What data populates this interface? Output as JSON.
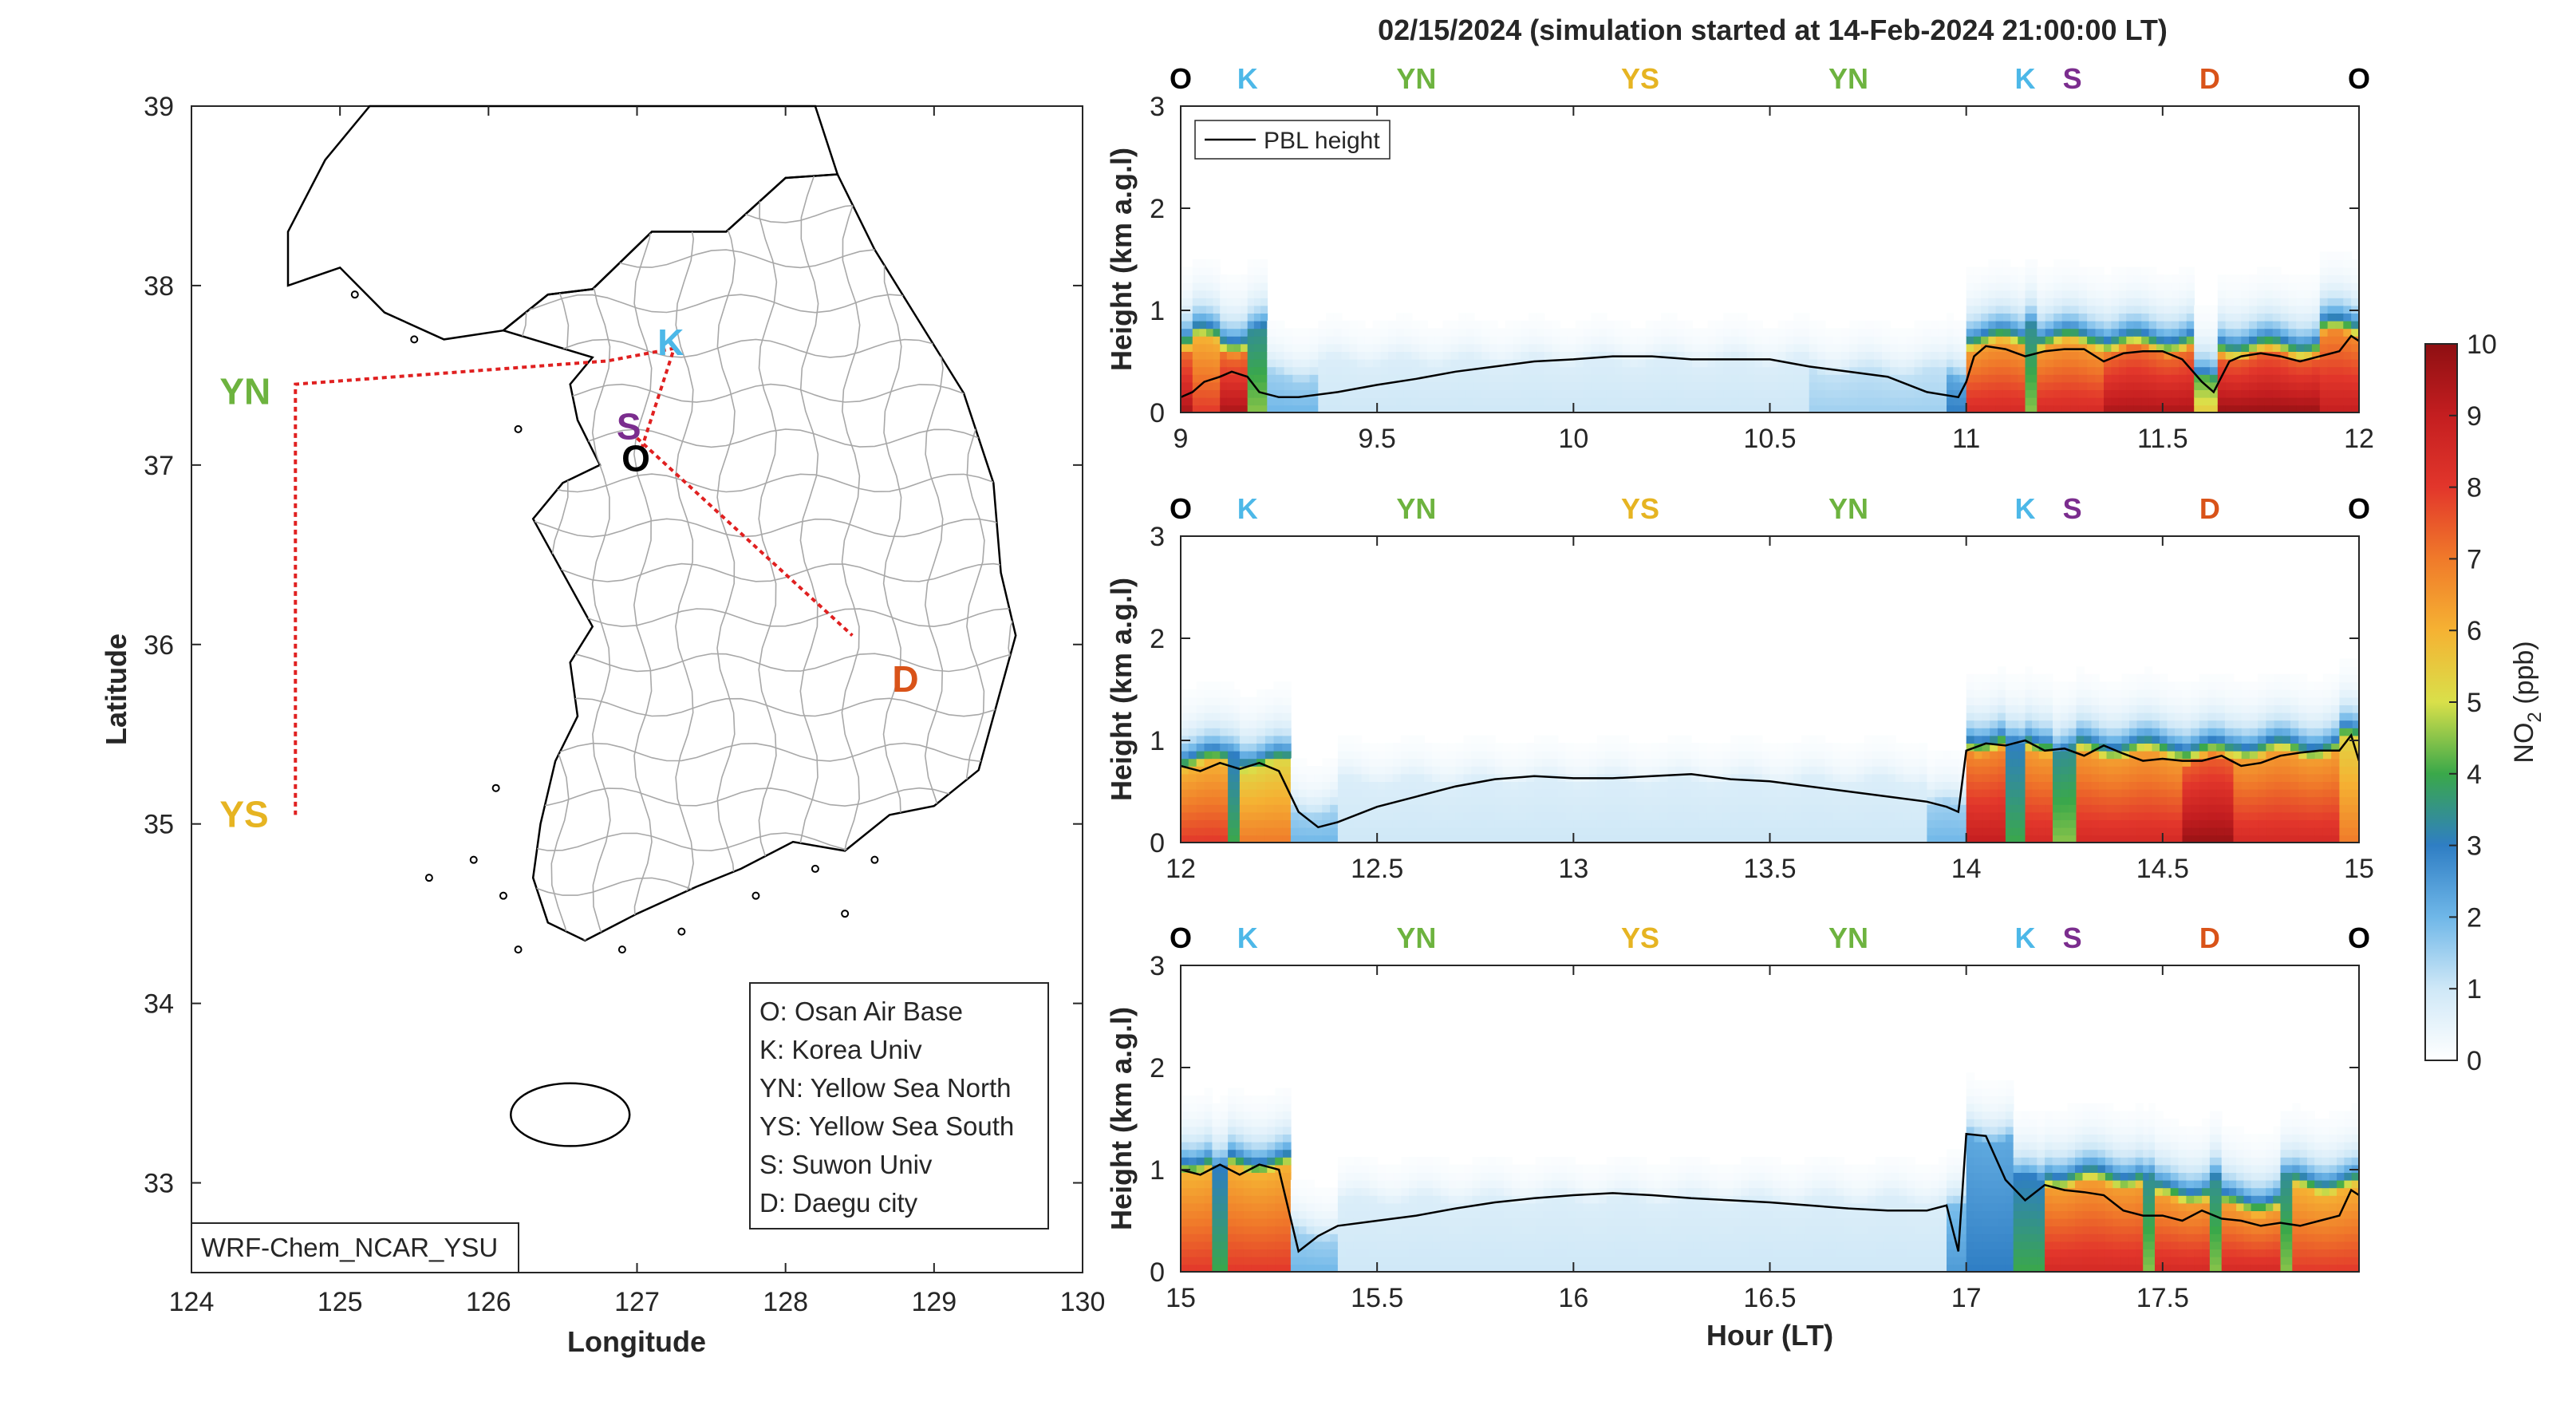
{
  "title": "02/15/2024 (simulation started at 14-Feb-2024 21:00:00 LT)",
  "colors": {
    "osan": "#000000",
    "korea": "#4db8e8",
    "yellow_north": "#6db33f",
    "yellow_south": "#e6b422",
    "suwon": "#7b2d8e",
    "daegu": "#d95319",
    "track": "#e02020",
    "pbl": "#000000"
  },
  "map": {
    "xlabel": "Longitude",
    "ylabel": "Latitude",
    "xlim": [
      124,
      130
    ],
    "ylim": [
      32.5,
      39
    ],
    "xticks": [
      "124",
      "125",
      "126",
      "127",
      "128",
      "129",
      "130"
    ],
    "yticks": [
      "33",
      "34",
      "35",
      "36",
      "37",
      "38",
      "39"
    ],
    "model_label": "WRF-Chem_NCAR_YSU",
    "sites": [
      {
        "code": "O",
        "lon": 127.03,
        "lat": 37.09,
        "color": "#000000"
      },
      {
        "code": "K",
        "lon": 127.03,
        "lat": 37.59,
        "color": "#4db8e8"
      },
      {
        "code": "YN",
        "lon": 124.7,
        "lat": 37.45,
        "color": "#6db33f"
      },
      {
        "code": "YS",
        "lon": 124.7,
        "lat": 35.05,
        "color": "#e6b422"
      },
      {
        "code": "S",
        "lon": 126.97,
        "lat": 37.3,
        "color": "#7b2d8e"
      },
      {
        "code": "D",
        "lon": 128.6,
        "lat": 35.87,
        "color": "#d95319"
      }
    ],
    "track": [
      [
        127.03,
        37.09
      ],
      [
        127.25,
        37.65
      ],
      [
        126.8,
        37.58
      ],
      [
        124.7,
        37.45
      ],
      [
        124.7,
        35.05
      ]
    ],
    "track2": [
      [
        127.0,
        37.15
      ],
      [
        128.45,
        36.05
      ]
    ],
    "legend": [
      "O: Osan Air Base",
      "K: Korea Univ",
      "YN: Yellow Sea North",
      "YS: Yellow Sea South",
      "S: Suwon Univ",
      "D: Daegu city"
    ]
  },
  "chart_data": [
    {
      "type": "heatmap",
      "title": "02/15/2024 (simulation started at 14-Feb-2024 21:00:00 LT)",
      "xlabel": "",
      "ylabel": "Height (km a.g.l)",
      "xlim": [
        9,
        12
      ],
      "ylim": [
        0,
        3
      ],
      "xticks": [
        "9",
        "9.5",
        "10",
        "10.5",
        "11",
        "11.5",
        "12"
      ],
      "yticks": [
        "0",
        "1",
        "2",
        "3"
      ],
      "legend": "PBL height",
      "legend_position": "top-left",
      "site_marks": [
        {
          "code": "O",
          "x": 9.0
        },
        {
          "code": "K",
          "x": 9.17
        },
        {
          "code": "YN",
          "x": 9.6
        },
        {
          "code": "YS",
          "x": 10.17
        },
        {
          "code": "YN",
          "x": 10.7
        },
        {
          "code": "K",
          "x": 11.15
        },
        {
          "code": "S",
          "x": 11.27
        },
        {
          "code": "D",
          "x": 11.62
        },
        {
          "code": "O",
          "x": 12.0
        }
      ],
      "pbl_height": {
        "x": [
          9.0,
          9.03,
          9.06,
          9.1,
          9.13,
          9.17,
          9.2,
          9.25,
          9.3,
          9.4,
          9.5,
          9.6,
          9.7,
          9.8,
          9.9,
          10.0,
          10.1,
          10.2,
          10.3,
          10.4,
          10.5,
          10.6,
          10.7,
          10.8,
          10.9,
          10.98,
          11.0,
          11.02,
          11.05,
          11.1,
          11.15,
          11.2,
          11.25,
          11.3,
          11.35,
          11.4,
          11.45,
          11.5,
          11.55,
          11.6,
          11.63,
          11.67,
          11.7,
          11.75,
          11.8,
          11.85,
          11.9,
          11.95,
          11.98,
          12.0
        ],
        "y": [
          0.15,
          0.2,
          0.3,
          0.35,
          0.4,
          0.35,
          0.2,
          0.15,
          0.15,
          0.2,
          0.27,
          0.33,
          0.4,
          0.45,
          0.5,
          0.52,
          0.55,
          0.55,
          0.52,
          0.52,
          0.52,
          0.45,
          0.4,
          0.35,
          0.2,
          0.15,
          0.3,
          0.55,
          0.65,
          0.62,
          0.55,
          0.6,
          0.62,
          0.62,
          0.5,
          0.58,
          0.6,
          0.6,
          0.52,
          0.3,
          0.2,
          0.5,
          0.55,
          0.58,
          0.55,
          0.5,
          0.55,
          0.6,
          0.75,
          0.7
        ]
      },
      "no2_ppb": {
        "note_cols": "time x",
        "columns": [
          {
            "x0": 9.0,
            "x1": 9.03,
            "surface": 9.5,
            "top": 0.6
          },
          {
            "x0": 9.03,
            "x1": 9.1,
            "surface": 8.0,
            "top": 0.7
          },
          {
            "x0": 9.1,
            "x1": 9.17,
            "surface": 9.5,
            "top": 0.6
          },
          {
            "x0": 9.17,
            "x1": 9.22,
            "surface": 4.5,
            "top": 0.8
          },
          {
            "x0": 9.22,
            "x1": 9.35,
            "surface": 2.0,
            "top": 0.35
          },
          {
            "x0": 9.35,
            "x1": 10.6,
            "surface": 1.0,
            "top": 0.5
          },
          {
            "x0": 10.6,
            "x1": 10.95,
            "surface": 1.5,
            "top": 0.4
          },
          {
            "x0": 10.95,
            "x1": 11.0,
            "surface": 3.0,
            "top": 0.35
          },
          {
            "x0": 11.0,
            "x1": 11.15,
            "surface": 8.5,
            "top": 0.65
          },
          {
            "x0": 11.15,
            "x1": 11.18,
            "surface": 4.5,
            "top": 0.9
          },
          {
            "x0": 11.18,
            "x1": 11.35,
            "surface": 8.5,
            "top": 0.65
          },
          {
            "x0": 11.35,
            "x1": 11.58,
            "surface": 9.5,
            "top": 0.6
          },
          {
            "x0": 11.58,
            "x1": 11.64,
            "surface": 5.5,
            "top": 0.3
          },
          {
            "x0": 11.64,
            "x1": 11.9,
            "surface": 9.8,
            "top": 0.55
          },
          {
            "x0": 11.9,
            "x1": 12.0,
            "surface": 9.0,
            "top": 0.75
          }
        ]
      }
    },
    {
      "type": "heatmap",
      "xlabel": "",
      "ylabel": "Height (km a.g.l)",
      "xlim": [
        12,
        15
      ],
      "ylim": [
        0,
        3
      ],
      "xticks": [
        "12",
        "12.5",
        "13",
        "13.5",
        "14",
        "14.5",
        "15"
      ],
      "yticks": [
        "0",
        "1",
        "2",
        "3"
      ],
      "site_marks": [
        {
          "code": "O",
          "x": 12.0
        },
        {
          "code": "K",
          "x": 12.17
        },
        {
          "code": "YN",
          "x": 12.6
        },
        {
          "code": "YS",
          "x": 13.17
        },
        {
          "code": "YN",
          "x": 13.7
        },
        {
          "code": "K",
          "x": 14.15
        },
        {
          "code": "S",
          "x": 14.27
        },
        {
          "code": "D",
          "x": 14.62
        },
        {
          "code": "O",
          "x": 15.0
        }
      ],
      "pbl_height": {
        "x": [
          12.0,
          12.05,
          12.1,
          12.15,
          12.2,
          12.25,
          12.3,
          12.35,
          12.4,
          12.5,
          12.6,
          12.7,
          12.8,
          12.9,
          13.0,
          13.1,
          13.2,
          13.3,
          13.4,
          13.5,
          13.6,
          13.7,
          13.8,
          13.9,
          13.95,
          13.98,
          14.0,
          14.05,
          14.1,
          14.15,
          14.2,
          14.25,
          14.3,
          14.35,
          14.4,
          14.45,
          14.5,
          14.55,
          14.6,
          14.65,
          14.7,
          14.75,
          14.8,
          14.85,
          14.9,
          14.95,
          14.98,
          15.0
        ],
        "y": [
          0.75,
          0.7,
          0.78,
          0.72,
          0.78,
          0.7,
          0.3,
          0.15,
          0.2,
          0.35,
          0.45,
          0.55,
          0.62,
          0.65,
          0.63,
          0.63,
          0.65,
          0.67,
          0.62,
          0.6,
          0.55,
          0.5,
          0.45,
          0.4,
          0.35,
          0.3,
          0.9,
          0.97,
          0.95,
          1.0,
          0.9,
          0.92,
          0.85,
          0.95,
          0.87,
          0.8,
          0.82,
          0.8,
          0.8,
          0.85,
          0.75,
          0.78,
          0.85,
          0.88,
          0.9,
          0.9,
          1.05,
          0.8
        ]
      },
      "no2_ppb": {
        "columns": [
          {
            "x0": 12.0,
            "x1": 12.12,
            "surface": 8.0,
            "top": 0.75
          },
          {
            "x0": 12.12,
            "x1": 12.15,
            "surface": 4.0,
            "top": 0.9
          },
          {
            "x0": 12.15,
            "x1": 12.28,
            "surface": 7.0,
            "top": 0.75
          },
          {
            "x0": 12.28,
            "x1": 12.4,
            "surface": 2.0,
            "top": 0.3
          },
          {
            "x0": 12.4,
            "x1": 13.9,
            "surface": 1.0,
            "top": 0.6
          },
          {
            "x0": 13.9,
            "x1": 14.0,
            "surface": 2.0,
            "top": 0.35
          },
          {
            "x0": 14.0,
            "x1": 14.1,
            "surface": 9.0,
            "top": 0.9
          },
          {
            "x0": 14.1,
            "x1": 14.15,
            "surface": 4.0,
            "top": 0.95
          },
          {
            "x0": 14.15,
            "x1": 14.22,
            "surface": 8.5,
            "top": 0.9
          },
          {
            "x0": 14.22,
            "x1": 14.28,
            "surface": 4.5,
            "top": 0.9
          },
          {
            "x0": 14.28,
            "x1": 14.55,
            "surface": 8.5,
            "top": 0.85
          },
          {
            "x0": 14.55,
            "x1": 14.68,
            "surface": 9.8,
            "top": 0.8
          },
          {
            "x0": 14.68,
            "x1": 14.95,
            "surface": 8.5,
            "top": 0.85
          },
          {
            "x0": 14.95,
            "x1": 15.0,
            "surface": 7.0,
            "top": 1.0
          }
        ]
      }
    },
    {
      "type": "heatmap",
      "xlabel": "Hour (LT)",
      "ylabel": "Height (km a.g.l)",
      "xlim": [
        15,
        18
      ],
      "ylim": [
        0,
        3
      ],
      "xticks": [
        "15",
        "15.5",
        "16",
        "16.5",
        "17",
        "17.5"
      ],
      "yticks": [
        "0",
        "1",
        "2",
        "3"
      ],
      "site_marks": [
        {
          "code": "O",
          "x": 15.0
        },
        {
          "code": "K",
          "x": 15.17
        },
        {
          "code": "YN",
          "x": 15.6
        },
        {
          "code": "YS",
          "x": 16.17
        },
        {
          "code": "YN",
          "x": 16.7
        },
        {
          "code": "K",
          "x": 17.15
        },
        {
          "code": "S",
          "x": 17.27
        },
        {
          "code": "D",
          "x": 17.62
        },
        {
          "code": "O",
          "x": 18.0
        }
      ],
      "pbl_height": {
        "x": [
          15.0,
          15.05,
          15.1,
          15.15,
          15.2,
          15.25,
          15.3,
          15.35,
          15.4,
          15.5,
          15.6,
          15.7,
          15.8,
          15.9,
          16.0,
          16.1,
          16.2,
          16.3,
          16.4,
          16.5,
          16.6,
          16.7,
          16.8,
          16.9,
          16.95,
          16.98,
          17.0,
          17.05,
          17.1,
          17.15,
          17.2,
          17.25,
          17.3,
          17.35,
          17.4,
          17.45,
          17.5,
          17.55,
          17.6,
          17.65,
          17.7,
          17.75,
          17.8,
          17.85,
          17.9,
          17.95,
          17.98,
          18.0
        ],
        "y": [
          1.0,
          0.95,
          1.05,
          0.95,
          1.05,
          1.0,
          0.2,
          0.35,
          0.45,
          0.5,
          0.55,
          0.62,
          0.68,
          0.72,
          0.75,
          0.77,
          0.75,
          0.72,
          0.7,
          0.68,
          0.65,
          0.62,
          0.6,
          0.6,
          0.65,
          0.2,
          1.35,
          1.33,
          0.9,
          0.7,
          0.85,
          0.8,
          0.78,
          0.75,
          0.6,
          0.55,
          0.55,
          0.5,
          0.6,
          0.52,
          0.5,
          0.45,
          0.48,
          0.45,
          0.5,
          0.55,
          0.8,
          0.75
        ]
      },
      "no2_ppb": {
        "columns": [
          {
            "x0": 15.0,
            "x1": 15.08,
            "surface": 8.0,
            "top": 1.0
          },
          {
            "x0": 15.08,
            "x1": 15.12,
            "surface": 4.0,
            "top": 1.0
          },
          {
            "x0": 15.12,
            "x1": 15.28,
            "surface": 8.0,
            "top": 1.0
          },
          {
            "x0": 15.28,
            "x1": 15.4,
            "surface": 2.0,
            "top": 0.35
          },
          {
            "x0": 15.4,
            "x1": 16.95,
            "surface": 1.0,
            "top": 0.7
          },
          {
            "x0": 16.95,
            "x1": 17.0,
            "surface": 2.5,
            "top": 0.6
          },
          {
            "x0": 17.0,
            "x1": 17.12,
            "surface": 3.0,
            "top": 1.3
          },
          {
            "x0": 17.12,
            "x1": 17.2,
            "surface": 4.0,
            "top": 0.9
          },
          {
            "x0": 17.2,
            "x1": 17.45,
            "surface": 8.5,
            "top": 0.85
          },
          {
            "x0": 17.45,
            "x1": 17.48,
            "surface": 4.5,
            "top": 0.9
          },
          {
            "x0": 17.48,
            "x1": 17.62,
            "surface": 8.5,
            "top": 0.7
          },
          {
            "x0": 17.62,
            "x1": 17.65,
            "surface": 4.5,
            "top": 0.9
          },
          {
            "x0": 17.65,
            "x1": 17.8,
            "surface": 8.5,
            "top": 0.6
          },
          {
            "x0": 17.8,
            "x1": 17.83,
            "surface": 4.5,
            "top": 0.9
          },
          {
            "x0": 17.83,
            "x1": 18.0,
            "surface": 8.0,
            "top": 0.8
          }
        ]
      }
    }
  ],
  "colorbar": {
    "label_main": "NO",
    "label_sub": "2",
    "label_unit": " (ppb)",
    "min": 0,
    "max": 10,
    "ticks": [
      "0",
      "1",
      "2",
      "3",
      "4",
      "5",
      "6",
      "7",
      "8",
      "9",
      "10"
    ],
    "stops": [
      [
        0,
        "#ffffff"
      ],
      [
        1,
        "#cfe8f7"
      ],
      [
        2,
        "#6fb7e8"
      ],
      [
        3,
        "#2f7ec4"
      ],
      [
        4,
        "#3aa84a"
      ],
      [
        5,
        "#d9e04a"
      ],
      [
        6,
        "#f5b233"
      ],
      [
        7,
        "#f07a2a"
      ],
      [
        8,
        "#e2362b"
      ],
      [
        9,
        "#c41e20"
      ],
      [
        10,
        "#8e0f12"
      ]
    ]
  }
}
